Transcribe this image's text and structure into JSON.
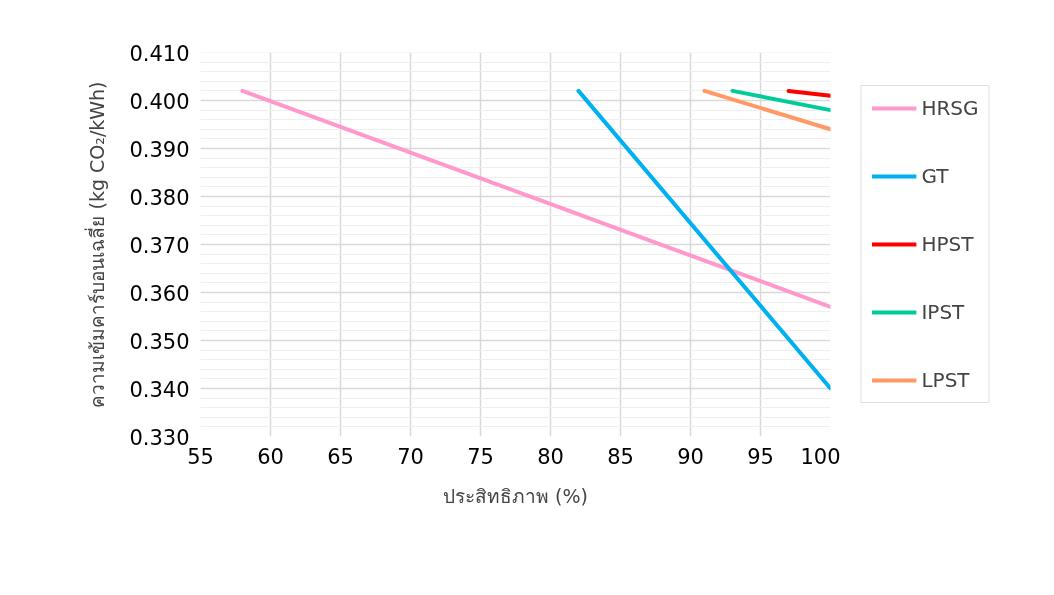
{
  "chart_data": {
    "type": "line",
    "xlabel": "ประสิทธิภาพ (%)",
    "ylabel": "ความเข้มคาร์บอนเฉลี่ย (kg CO₂/kWh)",
    "series": [
      {
        "name": "HRSG",
        "color": "#ff99cc",
        "x": [
          58,
          100
        ],
        "values": [
          0.402,
          0.357
        ]
      },
      {
        "name": "GT",
        "color": "#00b0f0",
        "x": [
          82,
          100
        ],
        "values": [
          0.402,
          0.34
        ]
      },
      {
        "name": "HPST",
        "color": "#ff0000",
        "x": [
          97,
          100
        ],
        "values": [
          0.402,
          0.401
        ]
      },
      {
        "name": "IPST",
        "color": "#00cc99",
        "x": [
          93,
          100
        ],
        "values": [
          0.402,
          0.398
        ]
      },
      {
        "name": "LPST",
        "color": "#ff9966",
        "x": [
          91,
          100
        ],
        "values": [
          0.402,
          0.394
        ]
      }
    ],
    "xlim": [
      55,
      100
    ],
    "xticks": [
      55,
      60,
      65,
      70,
      75,
      80,
      85,
      90,
      95,
      100
    ],
    "ylim": [
      0.33,
      0.41
    ],
    "yticks": [
      {
        "value": 0.33,
        "label": "0.330"
      },
      {
        "value": 0.34,
        "label": "0.340"
      },
      {
        "value": 0.35,
        "label": "0.350"
      },
      {
        "value": 0.36,
        "label": "0.360"
      },
      {
        "value": 0.37,
        "label": "0.370"
      },
      {
        "value": 0.38,
        "label": "0.380"
      },
      {
        "value": 0.39,
        "label": "0.390"
      },
      {
        "value": 0.4,
        "label": "0.400"
      },
      {
        "value": 0.41,
        "label": "0.410"
      }
    ],
    "grid": true,
    "legend": "right",
    "marker": "none",
    "line_style": "solid"
  }
}
